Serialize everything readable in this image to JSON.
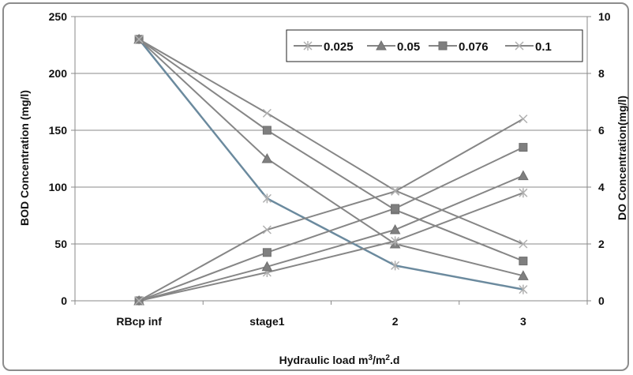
{
  "chart_data": {
    "type": "line",
    "categories": [
      "RBcp inf",
      "stage1",
      "2",
      "3"
    ],
    "xlabel": "Hydraulic load m³/m².d",
    "ylabel": "BOD Concentration (mg/l)",
    "y2label": "DO Concentration(mg/l)",
    "ylim": [
      0,
      250
    ],
    "yticks": [
      0,
      50,
      100,
      150,
      200,
      250
    ],
    "y2lim": [
      0,
      10
    ],
    "y2ticks": [
      0,
      2,
      4,
      6,
      8,
      10
    ],
    "grid": "horizontal",
    "legend_position": "top-right",
    "legend": [
      {
        "name": "0.025",
        "marker": "star"
      },
      {
        "name": "0.05",
        "marker": "triangle"
      },
      {
        "name": "0.076",
        "marker": "square"
      },
      {
        "name": "0.1",
        "marker": "x"
      }
    ],
    "series": [
      {
        "name": "0.025",
        "metric": "BOD",
        "axis": "left",
        "marker": "star",
        "color": "#6b8a9e",
        "values": [
          230,
          90,
          31,
          10
        ]
      },
      {
        "name": "0.05",
        "metric": "BOD",
        "axis": "left",
        "marker": "triangle",
        "color": "#868686",
        "values": [
          230,
          125,
          50,
          22
        ]
      },
      {
        "name": "0.076",
        "metric": "BOD",
        "axis": "left",
        "marker": "square",
        "color": "#868686",
        "values": [
          230,
          150,
          80,
          35
        ]
      },
      {
        "name": "0.1",
        "metric": "BOD",
        "axis": "left",
        "marker": "x",
        "color": "#868686",
        "values": [
          230,
          165,
          97,
          50
        ]
      },
      {
        "name": "0.025",
        "metric": "DO",
        "axis": "right",
        "marker": "star",
        "color": "#868686",
        "values": [
          0,
          1.0,
          2.1,
          3.8
        ]
      },
      {
        "name": "0.05",
        "metric": "DO",
        "axis": "right",
        "marker": "triangle",
        "color": "#868686",
        "values": [
          0,
          1.2,
          2.5,
          4.4
        ]
      },
      {
        "name": "0.076",
        "metric": "DO",
        "axis": "right",
        "marker": "square",
        "color": "#868686",
        "values": [
          0,
          1.7,
          3.25,
          5.4
        ]
      },
      {
        "name": "0.1",
        "metric": "DO",
        "axis": "right",
        "marker": "x",
        "color": "#868686",
        "values": [
          0,
          2.5,
          3.85,
          6.4
        ]
      }
    ]
  }
}
